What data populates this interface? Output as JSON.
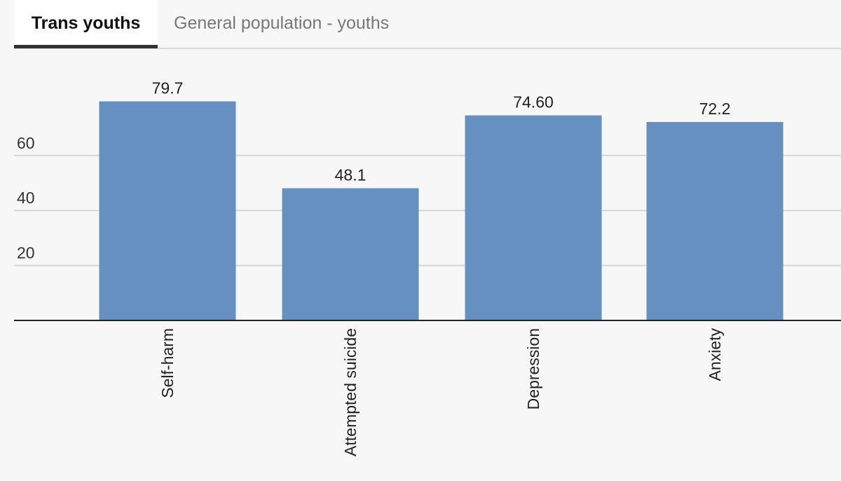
{
  "tabs": [
    {
      "label": "Trans youths",
      "active": true
    },
    {
      "label": "General population - youths",
      "active": false
    }
  ],
  "chart_data": {
    "type": "bar",
    "categories": [
      "Self-harm",
      "Attempted suicide",
      "Depression",
      "Anxiety"
    ],
    "values": [
      79.7,
      48.1,
      74.6,
      72.2
    ],
    "value_labels": [
      "79.7",
      "48.1",
      "74.60",
      "72.2"
    ],
    "yticks": [
      "20",
      "40",
      "60"
    ],
    "ytick_values": [
      20,
      40,
      60
    ],
    "ylim": [
      0,
      80
    ],
    "bar_color": "#6690c0",
    "grid": true,
    "legend": "none"
  }
}
